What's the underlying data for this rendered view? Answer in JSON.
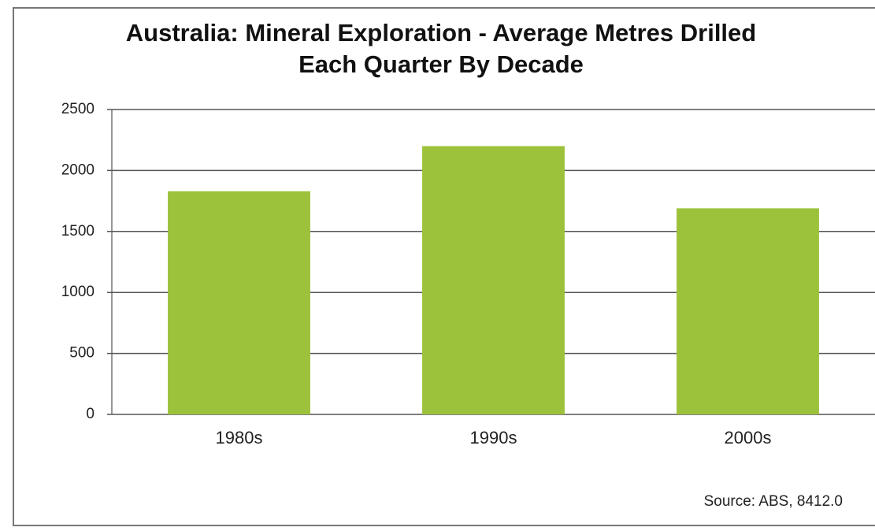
{
  "chart_data": {
    "type": "bar",
    "title": "Australia: Mineral Exploration - Average Metres Drilled Each Quarter By Decade",
    "categories": [
      "1980s",
      "1990s",
      "2000s"
    ],
    "values": [
      1830,
      2200,
      1690
    ],
    "color": "#9cc23b",
    "ylim": [
      0,
      2500
    ],
    "yticks": [
      0,
      500,
      1000,
      1500,
      2000,
      2500
    ],
    "grid": true,
    "annotation": "Source: ABS, 8412.0"
  }
}
